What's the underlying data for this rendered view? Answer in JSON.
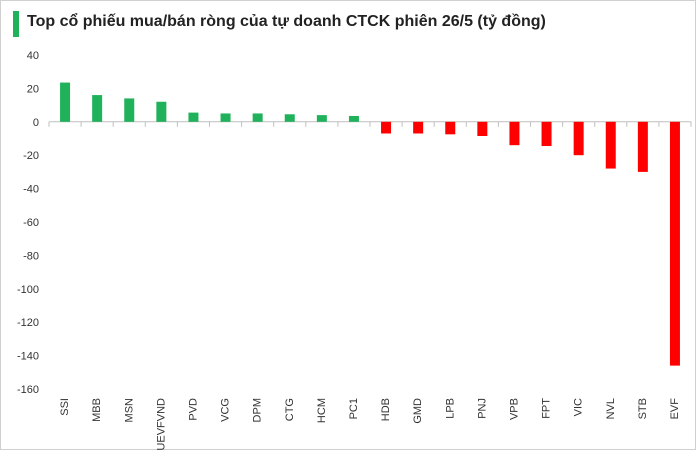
{
  "chart_data": {
    "type": "bar",
    "title": "Top cổ phiếu mua/bán ròng của tự doanh CTCK phiên 26/5 (tỷ đồng)",
    "categories": [
      "SSI",
      "MBB",
      "MSN",
      "FUEVFVND",
      "PVD",
      "VCG",
      "DPM",
      "CTG",
      "HCM",
      "PC1",
      "HDB",
      "GMD",
      "LPB",
      "PNJ",
      "VPB",
      "FPT",
      "VIC",
      "NVL",
      "STB",
      "EVF"
    ],
    "values": [
      23.5,
      16,
      14,
      12,
      5.5,
      5,
      5,
      4.5,
      4,
      3.5,
      -7,
      -7,
      -7.5,
      -8.5,
      -14,
      -14.5,
      -20,
      -28,
      -30,
      -146
    ],
    "ylim": [
      -160,
      40
    ],
    "yticks": [
      40,
      20,
      0,
      -20,
      -40,
      -60,
      -80,
      -100,
      -120,
      -140,
      -160
    ],
    "grid": false,
    "legend": "none",
    "colors": {
      "positive": "#1fb25a",
      "negative": "#ff0000",
      "title_bar": "#1fb25a"
    }
  }
}
